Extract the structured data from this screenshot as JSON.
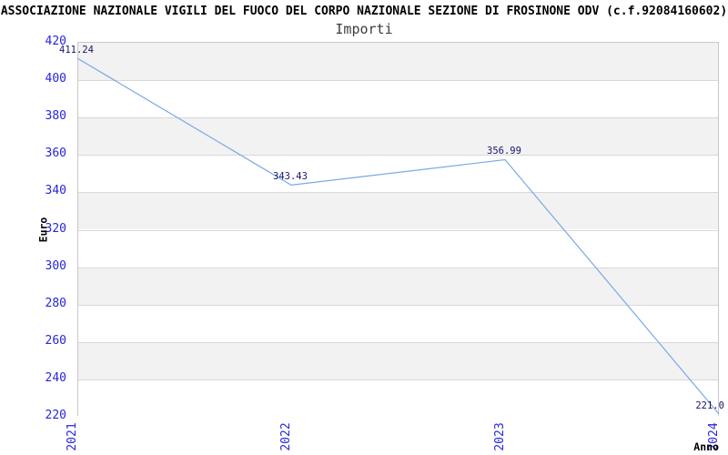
{
  "header": {
    "title": "ASSOCIAZIONE NAZIONALE VIGILI DEL FUOCO DEL CORPO NAZIONALE SEZIONE DI FROSINONE ODV (c.f.92084160602)",
    "subtitle": "Importi"
  },
  "chart_data": {
    "type": "line",
    "title": "Importi",
    "categories": [
      "2021",
      "2022",
      "2023",
      "2024"
    ],
    "values": [
      411.24,
      343.43,
      356.99,
      221.0
    ],
    "point_labels": [
      "411.24",
      "343.43",
      "356.99",
      "221.0"
    ],
    "xlabel": "Anno",
    "ylabel": "Euro",
    "ylim": [
      220,
      420
    ],
    "ytick_step": 20,
    "yticks": [
      420,
      400,
      380,
      360,
      340,
      320,
      300,
      280,
      260,
      240,
      220
    ],
    "legend": "none",
    "grid": "horizontal-bands",
    "colors": {
      "line": "#79a9e8",
      "tick_label": "#2626dd",
      "point_label": "#16166b",
      "band_a": "#f2f2f2",
      "band_b": "#ffffff",
      "gridline": "#d8d8d8",
      "plot_border": "#c9c9c9",
      "title": "#000000",
      "subtitle": "#3d3d3d"
    }
  }
}
